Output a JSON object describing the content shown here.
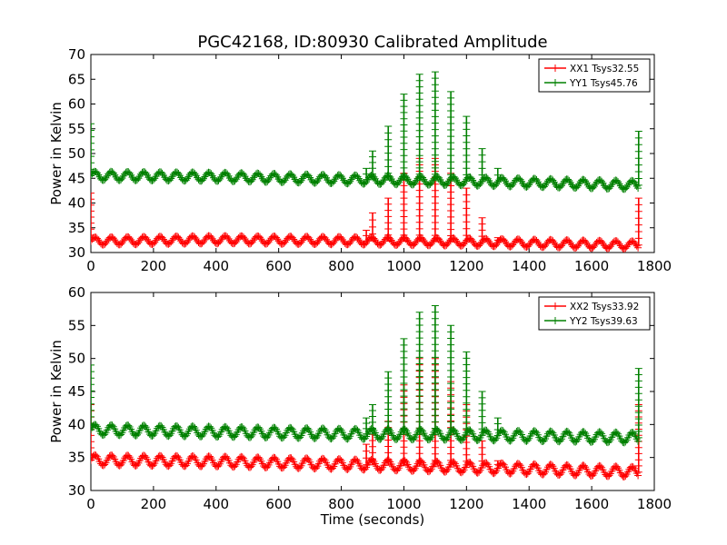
{
  "figure": {
    "title": "PGC42168, ID:80930 Calibrated Amplitude"
  },
  "chart_data": [
    {
      "type": "line",
      "title": "PGC42168, ID:80930 Calibrated Amplitude",
      "xlabel": "",
      "ylabel": "Power in Kelvin",
      "xlim": [
        0,
        1800
      ],
      "ylim": [
        30,
        70
      ],
      "xticks": [
        0,
        200,
        400,
        600,
        800,
        1000,
        1200,
        1400,
        1600,
        1800
      ],
      "yticks": [
        30,
        35,
        40,
        45,
        50,
        55,
        60,
        65,
        70
      ],
      "legend_position": "top-right",
      "marker": "+",
      "series": [
        {
          "name": "XX1 Tsys32.55",
          "color": "#ff0000",
          "baseline": [
            [
              0,
              32.3
            ],
            [
              400,
              32.6
            ],
            [
              800,
              32.4
            ],
            [
              1200,
              32.1
            ],
            [
              1750,
              31.5
            ]
          ],
          "ripple_amplitude": 0.8,
          "ripple_period": 52,
          "x_max": 1750,
          "spikes": [
            [
              0,
              42
            ],
            [
              880,
              34.5
            ],
            [
              900,
              38
            ],
            [
              950,
              41
            ],
            [
              1000,
              46
            ],
            [
              1050,
              49
            ],
            [
              1100,
              49
            ],
            [
              1150,
              46
            ],
            [
              1200,
              43
            ],
            [
              1250,
              37
            ],
            [
              1300,
              33
            ],
            [
              1750,
              41
            ]
          ]
        },
        {
          "name": "YY1 Tsys45.76",
          "color": "#008000",
          "baseline": [
            [
              0,
              45.5
            ],
            [
              400,
              45.3
            ],
            [
              800,
              44.8
            ],
            [
              1200,
              44.4
            ],
            [
              1750,
              43.6
            ]
          ],
          "ripple_amplitude": 0.9,
          "ripple_period": 52,
          "x_max": 1750,
          "spikes": [
            [
              0,
              56
            ],
            [
              880,
              47
            ],
            [
              900,
              50.5
            ],
            [
              950,
              55.5
            ],
            [
              1000,
              62
            ],
            [
              1050,
              66
            ],
            [
              1100,
              66.5
            ],
            [
              1150,
              62.5
            ],
            [
              1200,
              57.5
            ],
            [
              1250,
              51
            ],
            [
              1300,
              47
            ],
            [
              1750,
              54.5
            ]
          ]
        }
      ]
    },
    {
      "type": "line",
      "title": "",
      "xlabel": "Time (seconds)",
      "ylabel": "Power in Kelvin",
      "xlim": [
        0,
        1800
      ],
      "ylim": [
        30,
        60
      ],
      "xticks": [
        0,
        200,
        400,
        600,
        800,
        1000,
        1200,
        1400,
        1600,
        1800
      ],
      "yticks": [
        30,
        35,
        40,
        45,
        50,
        55,
        60
      ],
      "legend_position": "top-right",
      "marker": "+",
      "series": [
        {
          "name": "XX2 Tsys33.92",
          "color": "#ff0000",
          "baseline": [
            [
              0,
              34.6
            ],
            [
              400,
              34.4
            ],
            [
              800,
              34.0
            ],
            [
              1200,
              33.5
            ],
            [
              1750,
              32.8
            ]
          ],
          "ripple_amplitude": 0.8,
          "ripple_period": 52,
          "x_max": 1750,
          "spikes": [
            [
              0,
              43
            ],
            [
              880,
              37
            ],
            [
              900,
              38.5
            ],
            [
              950,
              40.5
            ],
            [
              1000,
              46
            ],
            [
              1050,
              50
            ],
            [
              1100,
              50
            ],
            [
              1150,
              46.5
            ],
            [
              1200,
              43
            ],
            [
              1250,
              37.5
            ],
            [
              1300,
              34.5
            ],
            [
              1750,
              43
            ]
          ]
        },
        {
          "name": "YY2 Tsys39.63",
          "color": "#008000",
          "baseline": [
            [
              0,
              39.2
            ],
            [
              400,
              38.9
            ],
            [
              800,
              38.6
            ],
            [
              1200,
              38.4
            ],
            [
              1750,
              38.0
            ]
          ],
          "ripple_amplitude": 0.8,
          "ripple_period": 52,
          "x_max": 1750,
          "spikes": [
            [
              0,
              49
            ],
            [
              880,
              41
            ],
            [
              900,
              43
            ],
            [
              950,
              48
            ],
            [
              1000,
              53
            ],
            [
              1050,
              57
            ],
            [
              1100,
              58
            ],
            [
              1150,
              55
            ],
            [
              1200,
              51
            ],
            [
              1250,
              45
            ],
            [
              1300,
              41
            ],
            [
              1750,
              48.5
            ]
          ]
        }
      ]
    }
  ]
}
